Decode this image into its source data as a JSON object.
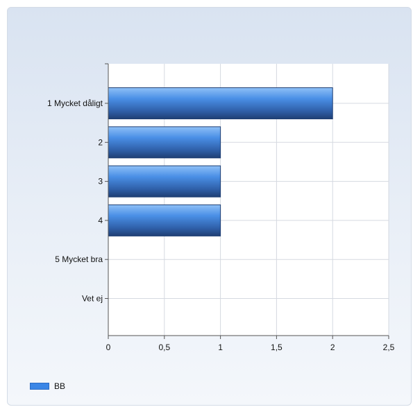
{
  "chart_data": {
    "type": "bar",
    "orientation": "horizontal",
    "categories": [
      "1 Mycket dåligt",
      "2",
      "3",
      "4",
      "5 Mycket bra",
      "Vet ej"
    ],
    "series": [
      {
        "name": "BB",
        "values": [
          2,
          1,
          1,
          1,
          0,
          0
        ]
      }
    ],
    "xlim": [
      0,
      2.5
    ],
    "xticks": [
      "0",
      "0,5",
      "1",
      "1,5",
      "2",
      "2,5"
    ],
    "grid": true,
    "legend": "bottom-left",
    "colors": {
      "bar": "#3a86e6",
      "bar_dark": "#1f3f74",
      "grid": "#d5d9e0",
      "axis": "#555555"
    }
  }
}
